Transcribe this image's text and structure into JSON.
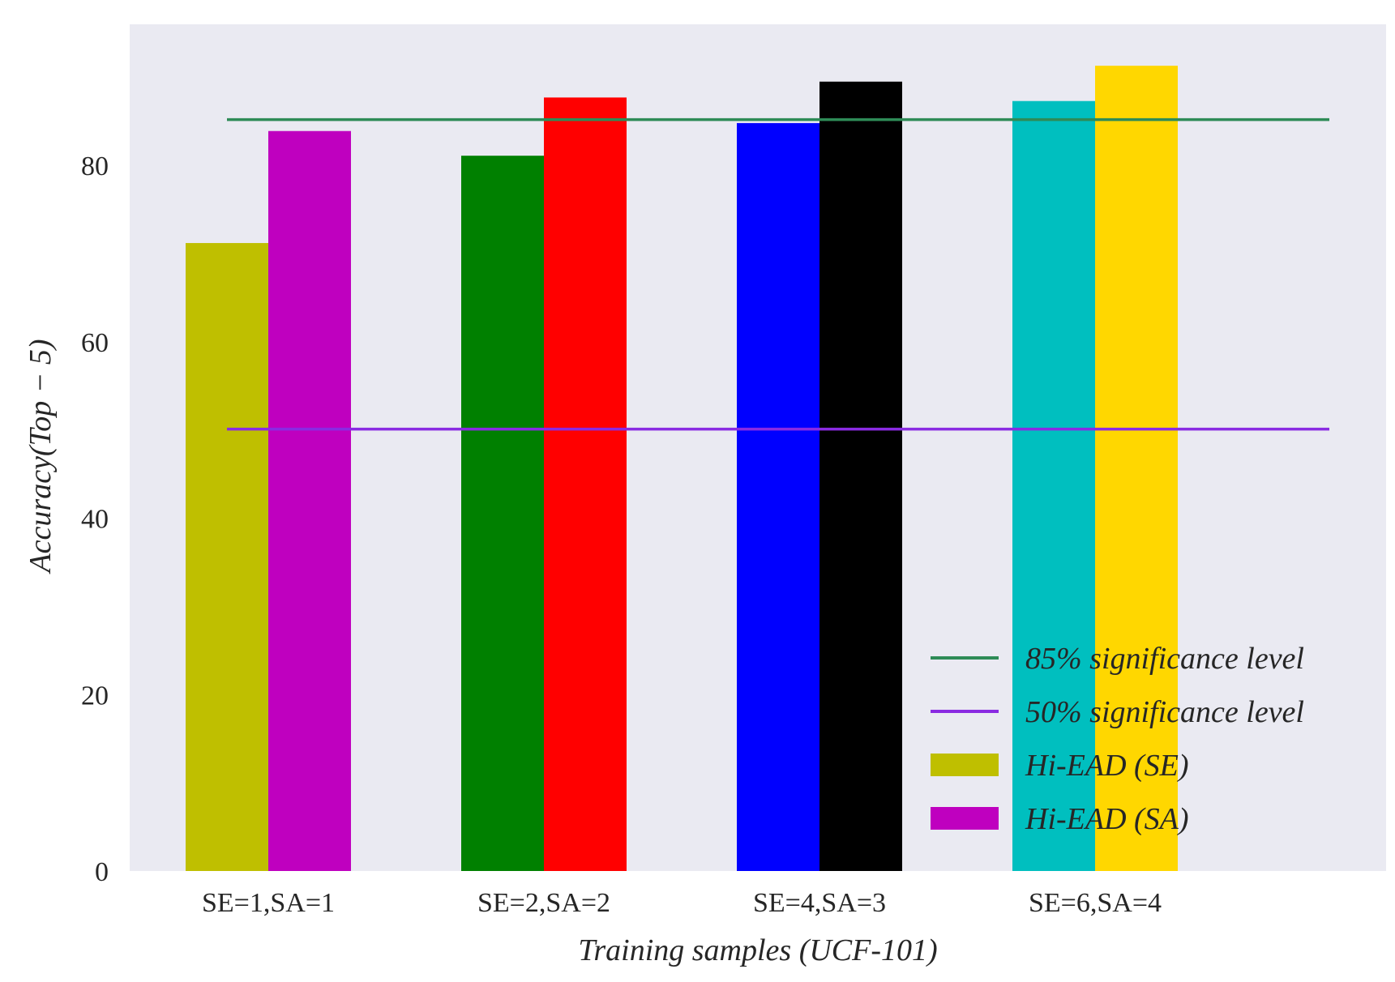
{
  "chart_data": {
    "type": "bar",
    "title": "",
    "xlabel": "Training samples (UCF-101)",
    "ylabel": "Accuracy(Top − 5)",
    "ylim": [
      0,
      96
    ],
    "yticks": [
      0,
      20,
      40,
      60,
      80
    ],
    "grid": false,
    "legend_position": "bottom-right",
    "categories": [
      "SE=1,SA=1",
      "SE=2,SA=2",
      "SE=4,SA=3",
      "SE=6,SA=4"
    ],
    "series": [
      {
        "name": "Hi-EAD (SE)",
        "values": [
          71.2,
          81.1,
          84.8,
          87.3
        ],
        "colors": [
          "#bfbf00",
          "#008000",
          "#0000ff",
          "#00bfbf"
        ],
        "legend_color": "#bfbf00"
      },
      {
        "name": "Hi-EAD (SA)",
        "values": [
          83.9,
          87.7,
          89.5,
          91.3
        ],
        "colors": [
          "#bf00bf",
          "#ff0000",
          "#000000",
          "#ffd700"
        ],
        "legend_color": "#bf00bf"
      }
    ],
    "reference_lines": [
      {
        "name": "85% significance level",
        "value": 85.2,
        "color": "#2e8b57"
      },
      {
        "name": "50% significance level",
        "value": 50.1,
        "color": "#8a2be2"
      }
    ],
    "plot_background": "#eaeaf2"
  }
}
